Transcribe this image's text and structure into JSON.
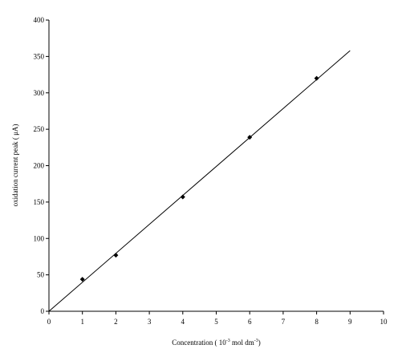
{
  "chart_data": {
    "type": "scatter",
    "xlabel": [
      "Concentration ( 10",
      "-3",
      " mol dm",
      "-3",
      ")"
    ],
    "ylabel": "oxidation current peak ( μA)",
    "x": [
      1,
      2,
      4,
      6,
      8
    ],
    "values": [
      44,
      77,
      157,
      239,
      320
    ],
    "color": "#000000",
    "fit_line": {
      "x": [
        0,
        9
      ],
      "y": [
        0,
        358
      ]
    },
    "xlim": [
      0,
      10
    ],
    "xticks": [
      0,
      1,
      2,
      3,
      4,
      5,
      6,
      7,
      8,
      9,
      10
    ],
    "ylim": [
      0,
      400
    ],
    "yticks": [
      0,
      50,
      100,
      150,
      200,
      250,
      300,
      350,
      400
    ],
    "grid": false
  }
}
